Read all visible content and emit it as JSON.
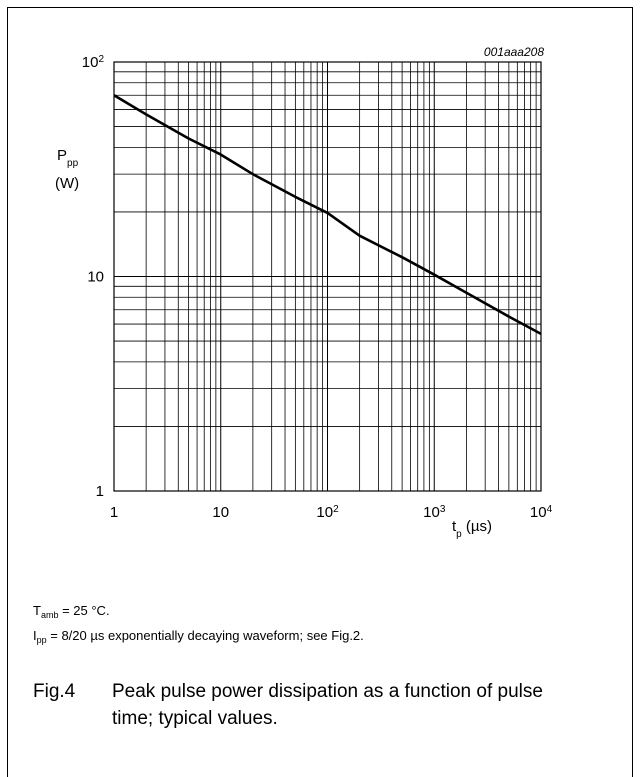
{
  "figure_code": "001aaa208",
  "chart_data": {
    "type": "line",
    "x_scale": "log",
    "y_scale": "log",
    "xlim": [
      1,
      10000
    ],
    "ylim": [
      1,
      100
    ],
    "grid": true,
    "ylabel": {
      "main": "P",
      "sub": "pp",
      "unit": "(W)"
    },
    "xlabel": {
      "main": "t",
      "sub": "p",
      "unit": " (µs)"
    },
    "x_ticks": [
      {
        "value": 1,
        "base": "1",
        "exp": ""
      },
      {
        "value": 10,
        "base": "10",
        "exp": ""
      },
      {
        "value": 100,
        "base": "10",
        "exp": "2"
      },
      {
        "value": 1000,
        "base": "10",
        "exp": "3"
      },
      {
        "value": 10000,
        "base": "10",
        "exp": "4"
      }
    ],
    "y_ticks": [
      {
        "value": 1,
        "base": "1",
        "exp": ""
      },
      {
        "value": 10,
        "base": "10",
        "exp": ""
      },
      {
        "value": 100,
        "base": "10",
        "exp": "2"
      }
    ],
    "series": [
      {
        "x": [
          1,
          2,
          5,
          10,
          20,
          50,
          100,
          200,
          500,
          1000,
          2000,
          5000,
          10000
        ],
        "y": [
          70,
          57,
          44,
          37,
          30,
          23.5,
          19.8,
          15.5,
          12.3,
          10.2,
          8.4,
          6.5,
          5.4
        ]
      }
    ]
  },
  "notes": {
    "tamb": {
      "sym": "T",
      "sub": "amb",
      "rest": " = 25 °C."
    },
    "ipp": {
      "sym": "I",
      "sub": "pp",
      "rest": " = 8/20 µs exponentially decaying waveform; see Fig.2."
    }
  },
  "caption": {
    "number": "Fig.4",
    "text": "Peak pulse power dissipation as a function of pulse time; typical values."
  }
}
